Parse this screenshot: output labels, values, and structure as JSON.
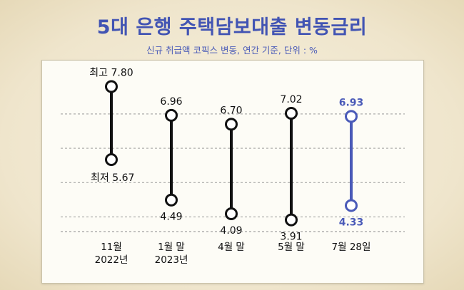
{
  "title": "5대 은행 주택담보대출 변동금리",
  "subtitle": "신규 취급액 코픽스 변동, 연간 기준, 단위 : %",
  "colors": {
    "title": "#4254b3",
    "highlight": "#4a5ab8",
    "normal": "#111111"
  },
  "chart_data": {
    "type": "range",
    "title": "5대 은행 주택담보대출 변동금리",
    "subtitle": "신규 취급액 코픽스 변동, 연간 기준, 단위 : %",
    "unit": "%",
    "ylim": [
      3.3,
      8.35
    ],
    "gridlines": [
      4.0,
      5.0,
      6.0,
      7.0
    ],
    "categories": [
      {
        "label": [
          "11월",
          "2022년"
        ],
        "high": 7.8,
        "low": 5.67,
        "high_label": "최고 7.80",
        "low_label": "최저 5.67",
        "highlight": false
      },
      {
        "label": [
          "1월 말",
          "2023년"
        ],
        "high": 6.96,
        "low": 4.49,
        "high_label": "6.96",
        "low_label": "4.49",
        "highlight": false
      },
      {
        "label": [
          "4월 말"
        ],
        "high": 6.7,
        "low": 4.09,
        "high_label": "6.70",
        "low_label": "4.09",
        "highlight": false
      },
      {
        "label": [
          "5월 말"
        ],
        "high": 7.02,
        "low": 3.91,
        "high_label": "7.02",
        "low_label": "3.91",
        "highlight": false
      },
      {
        "label": [
          "7월 28일"
        ],
        "high": 6.93,
        "low": 4.33,
        "high_label": "6.93",
        "low_label": "4.33",
        "highlight": true
      }
    ]
  }
}
